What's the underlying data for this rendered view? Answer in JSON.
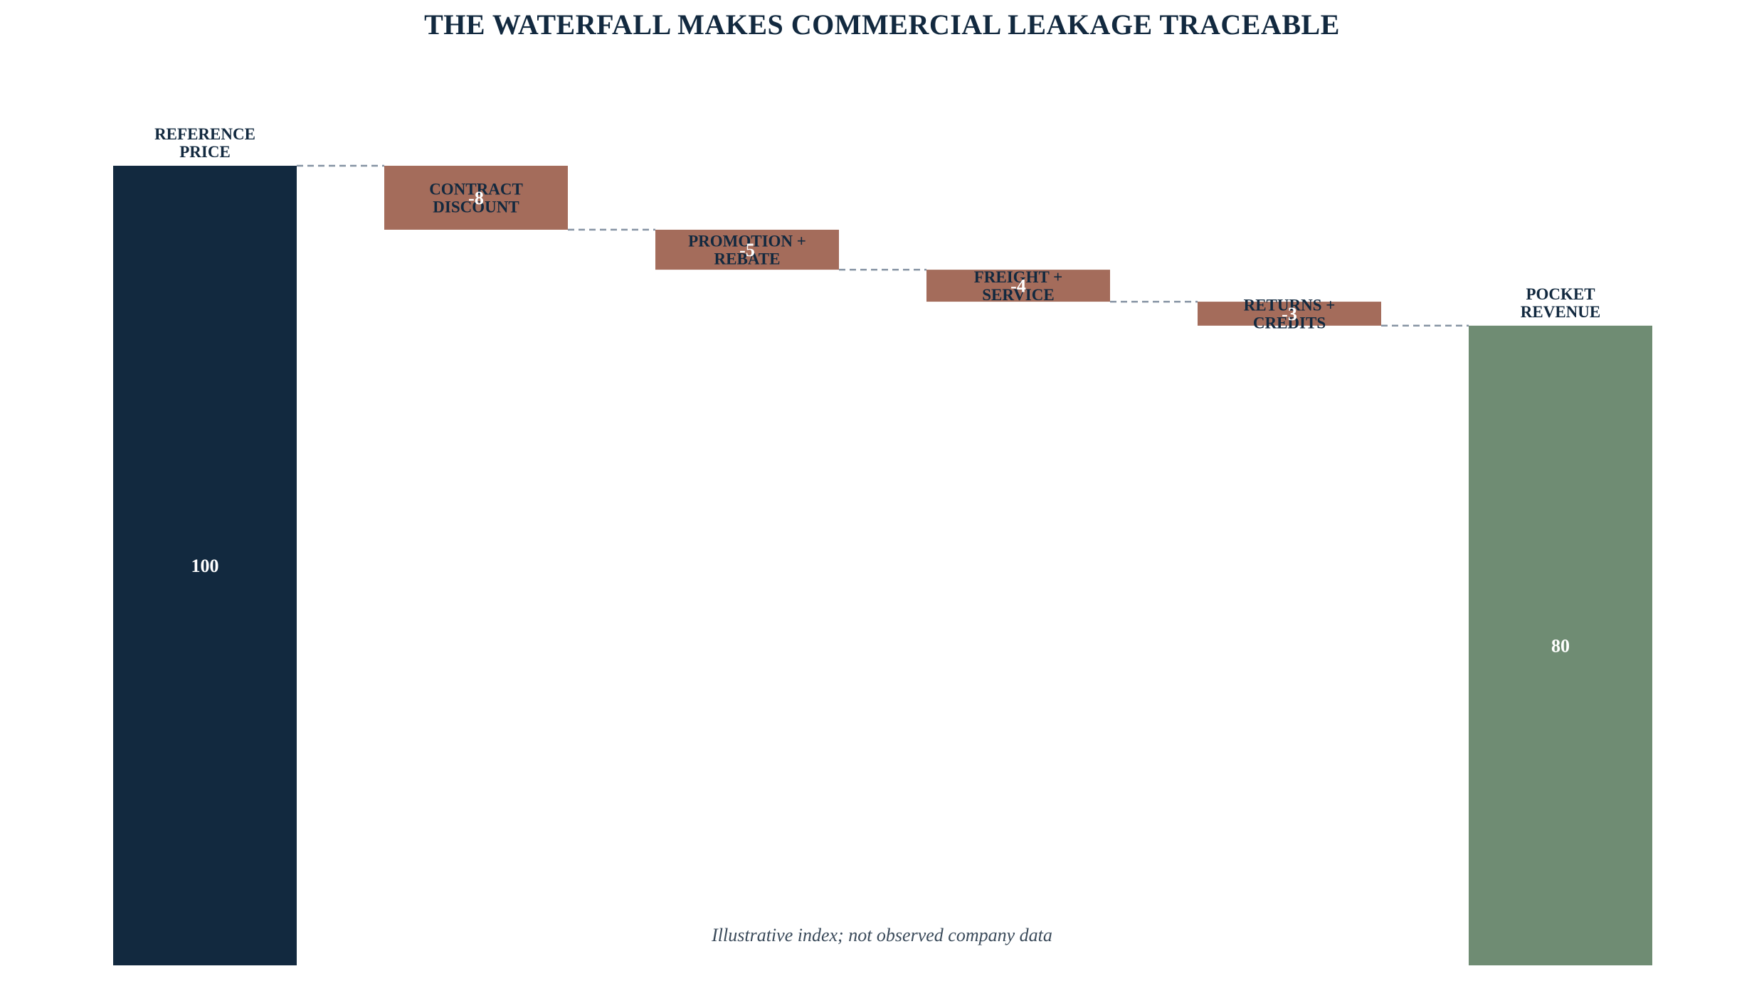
{
  "chart_data": {
    "type": "bar",
    "subtype": "waterfall",
    "title": "THE WATERFALL MAKES COMMERCIAL LEAKAGE TRACEABLE",
    "note": "Illustrative index; not observed company data",
    "xlabel": "",
    "ylabel": "",
    "ylim": [
      0,
      100
    ],
    "grid": false,
    "legend": "none",
    "categories": [
      [
        "REFERENCE",
        "PRICE"
      ],
      [
        "CONTRACT",
        "DISCOUNT"
      ],
      [
        "PROMOTION +",
        "REBATE"
      ],
      [
        "FREIGHT +",
        "SERVICE"
      ],
      [
        "RETURNS +",
        "CREDITS"
      ],
      [
        "POCKET",
        "REVENUE"
      ]
    ],
    "values": [
      100,
      -8,
      -5,
      -4,
      -3,
      80
    ],
    "value_labels": [
      "100",
      "-8",
      "-5",
      "-4",
      "-3",
      "80"
    ],
    "kinds": [
      "total",
      "delta",
      "delta",
      "delta",
      "delta",
      "total"
    ],
    "colors": {
      "start": "#12293F",
      "negative": "#A46C5B",
      "end": "#6F8C73",
      "connector": "#8593A3",
      "title": "#12293F"
    }
  }
}
